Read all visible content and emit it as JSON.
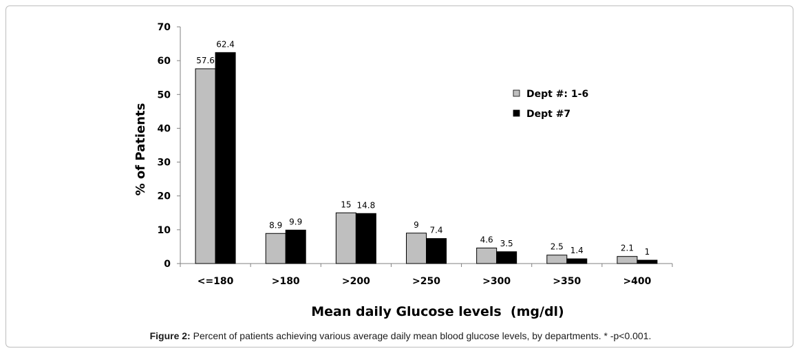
{
  "chart_data": {
    "type": "bar",
    "categories": [
      "<=180",
      ">180",
      ">200",
      ">250",
      ">300",
      ">350",
      ">400"
    ],
    "series": [
      {
        "name": "Dept #: 1-6",
        "color": "#bfbfbf",
        "values": [
          57.6,
          8.9,
          15,
          9,
          4.6,
          2.5,
          2.1
        ],
        "labels": [
          "57.6",
          "8.9",
          "15",
          "9",
          "4.6",
          "2.5",
          "2.1"
        ]
      },
      {
        "name": "Dept #7",
        "color": "#000000",
        "values": [
          62.4,
          9.9,
          14.8,
          7.4,
          3.5,
          1.4,
          1
        ],
        "labels": [
          "62.4",
          "9.9",
          "14.8",
          "7.4",
          "3.5",
          "1.4",
          "1"
        ]
      }
    ],
    "ylim": [
      0,
      70
    ],
    "yticks": [
      "0",
      "10",
      "20",
      "30",
      "40",
      "50",
      "60",
      "70"
    ],
    "xlabel": "Mean daily Glucose levels  (mg/dl)",
    "ylabel": "% of Patients",
    "legend_position": "top-right",
    "grid": false
  },
  "caption": {
    "label": "Figure 2:",
    "text": " Percent of patients achieving various average daily mean blood glucose levels, by departments. * -p<0.001."
  }
}
